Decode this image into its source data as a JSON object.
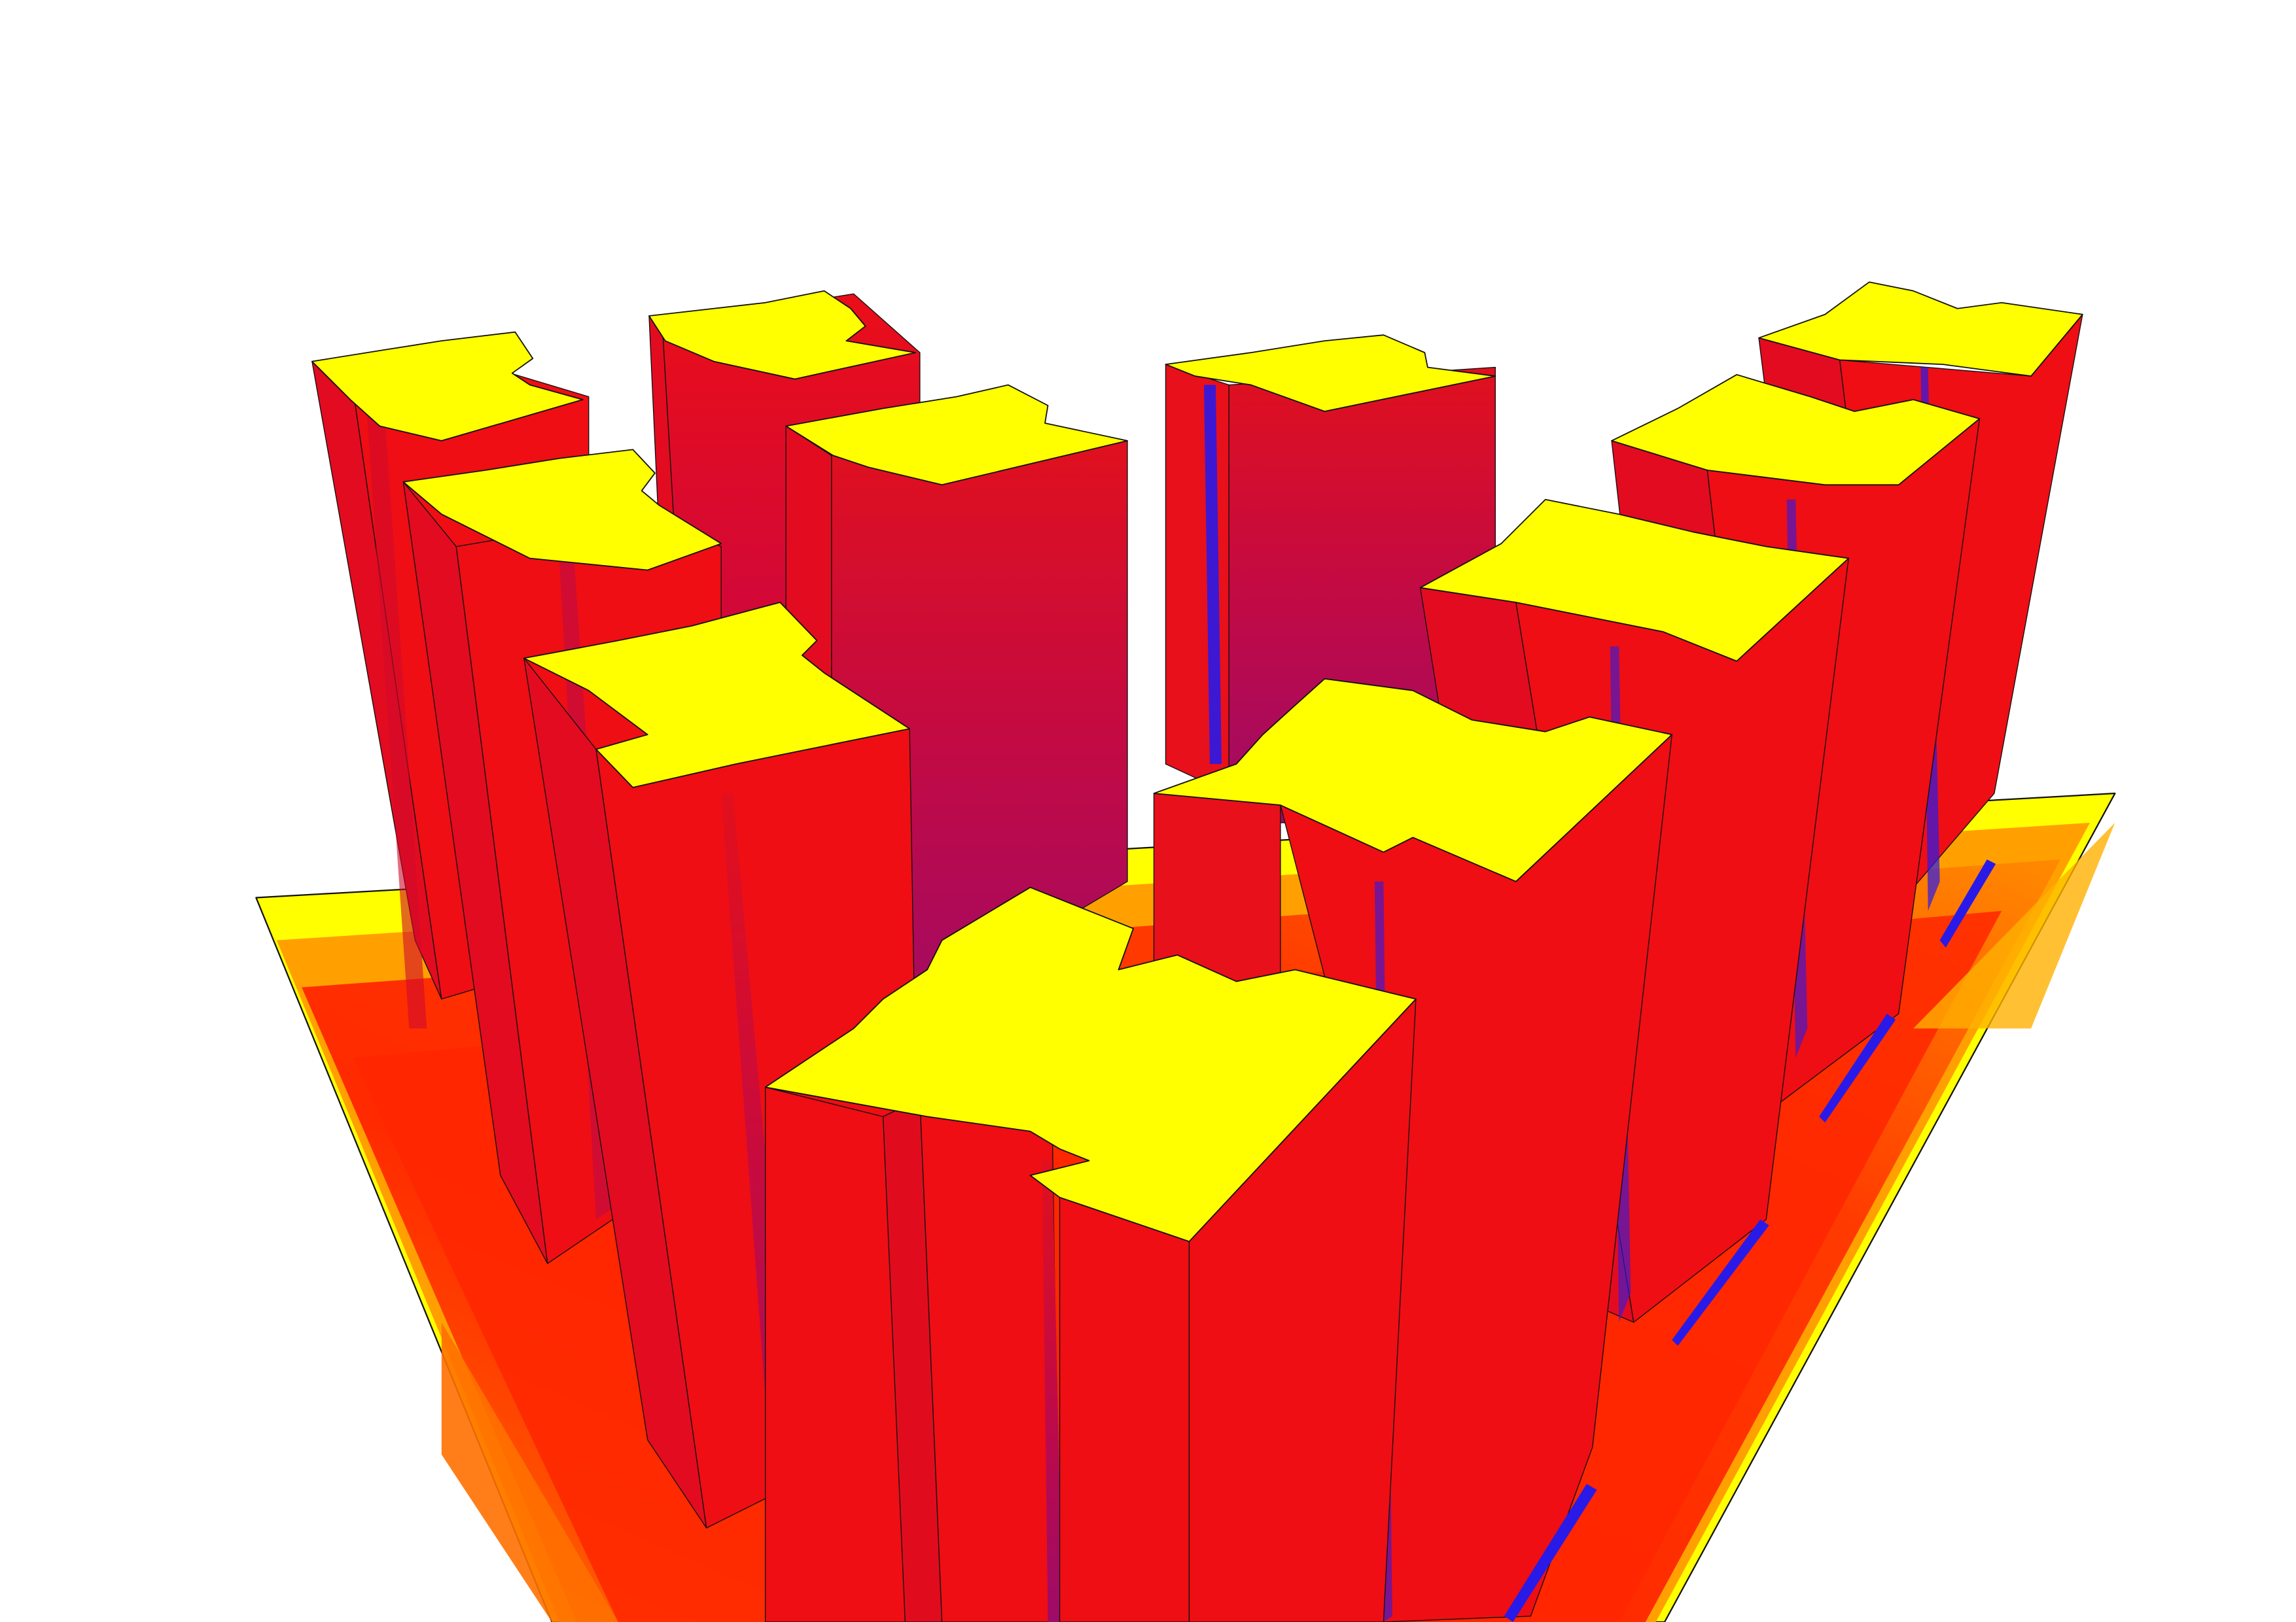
{
  "scene": {
    "description_free": true,
    "colors": {
      "background": "#ffffff",
      "roof": "#ffff00",
      "facade_sunlit": "#ee0e14",
      "facade_sunlit_alt": "#e80c1c",
      "facade_mid": "#d0083c",
      "facade_shade": "#a60b64",
      "shadow_edge": "#2a1ae8",
      "ground_hot": "#ff2200",
      "ground_warm": "#ff5a00",
      "ground_mild": "#ff9a00",
      "ground_cool": "#ffd800",
      "edge": "#111111"
    },
    "towers": [
      {
        "id": "back-left-1"
      },
      {
        "id": "back-left-2"
      },
      {
        "id": "back-center"
      },
      {
        "id": "left-mid-1"
      },
      {
        "id": "center-rear"
      },
      {
        "id": "left-front"
      },
      {
        "id": "right-back"
      },
      {
        "id": "right-mid-1"
      },
      {
        "id": "right-mid-2"
      },
      {
        "id": "right-front"
      },
      {
        "id": "front-center"
      }
    ]
  }
}
